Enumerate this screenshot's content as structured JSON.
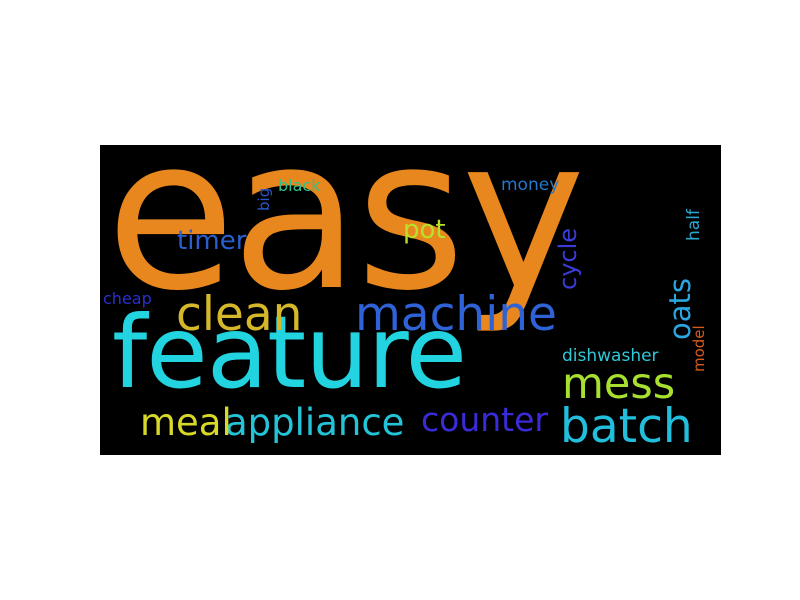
{
  "wordcloud": {
    "background": "#000000",
    "words": [
      {
        "text": "easy",
        "color": "#E8871E",
        "weight": 1.0
      },
      {
        "text": "feature",
        "color": "#22D3E0",
        "weight": 0.85
      },
      {
        "text": "machine",
        "color": "#2E62D6",
        "weight": 0.45
      },
      {
        "text": "clean",
        "color": "#D4B82A",
        "weight": 0.45
      },
      {
        "text": "batch",
        "color": "#22BFDD",
        "weight": 0.45
      },
      {
        "text": "mess",
        "color": "#A8E030",
        "weight": 0.4
      },
      {
        "text": "appliance",
        "color": "#24C4D8",
        "weight": 0.38
      },
      {
        "text": "meal",
        "color": "#D8D828",
        "weight": 0.35
      },
      {
        "text": "counter",
        "color": "#3A2BD8",
        "weight": 0.35
      },
      {
        "text": "oats",
        "color": "#2AA6E0",
        "weight": 0.3
      },
      {
        "text": "cycle",
        "color": "#3A3CD8",
        "weight": 0.28
      },
      {
        "text": "timer",
        "color": "#2B5FD0",
        "weight": 0.25
      },
      {
        "text": "pot",
        "color": "#B8E028",
        "weight": 0.25
      },
      {
        "text": "dishwasher",
        "color": "#2FC8D8",
        "weight": 0.18
      },
      {
        "text": "money",
        "color": "#2477C9",
        "weight": 0.17
      },
      {
        "text": "half",
        "color": "#2AA8D0",
        "weight": 0.16
      },
      {
        "text": "model",
        "color": "#D85A1E",
        "weight": 0.15
      },
      {
        "text": "black",
        "color": "#2CC28A",
        "weight": 0.16
      },
      {
        "text": "cheap",
        "color": "#2B2FD0",
        "weight": 0.15
      },
      {
        "text": "big",
        "color": "#2B56C8",
        "weight": 0.14
      }
    ]
  }
}
